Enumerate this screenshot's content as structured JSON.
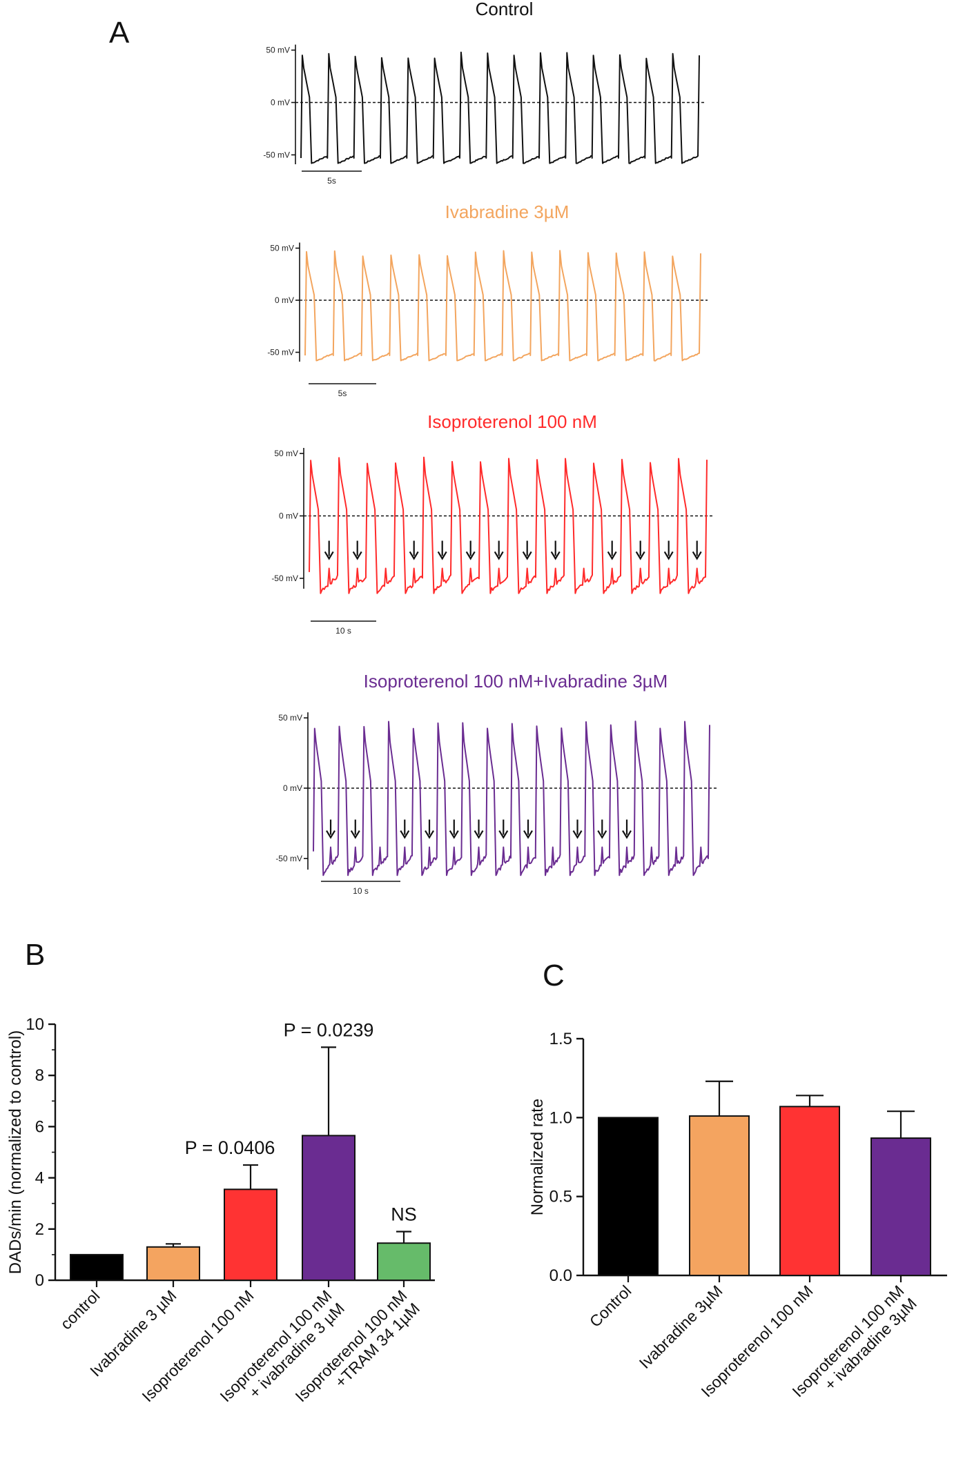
{
  "panels": {
    "A": "A",
    "B": "B",
    "C": "C"
  },
  "chart_data": [
    {
      "type": "line",
      "panel": "A",
      "description_type": "action potential traces",
      "voltage_labels": [
        "50 mV",
        "0 mV",
        "-50 mV"
      ],
      "traces": [
        {
          "name": "Control",
          "color": "#111111",
          "scale_bar": "5s",
          "beats": 15,
          "dads": 0
        },
        {
          "name": "Ivabradine 3µM",
          "color": "#f3a55e",
          "scale_bar": "5s",
          "beats": 14,
          "dads": 0
        },
        {
          "name": "Isoproterenol 100 nM",
          "color": "#ff2a2a",
          "scale_bar": "10 s",
          "beats": 14,
          "dads": 12
        },
        {
          "name": "Isoproterenol 100 nM+Ivabradine 3µM",
          "color": "#6a2c91",
          "scale_bar": "10 s",
          "beats": 16,
          "dads": 11
        }
      ]
    },
    {
      "type": "bar",
      "panel": "B",
      "ylabel": "DADs/min (normalized to control)",
      "ylim": [
        0,
        10
      ],
      "yticks": [
        "0",
        "2",
        "4",
        "6",
        "8",
        "10"
      ],
      "categories": [
        "control",
        "Ivabradine 3 µM",
        "Isoproterenol 100 nM",
        "Isoproterenol 100 nM\n+ ivabradine 3 µM",
        "Isoproterenol 100 nM\n+TRAM 34 1µM"
      ],
      "values": [
        1.0,
        1.3,
        3.55,
        5.65,
        1.45
      ],
      "errors": [
        0,
        0.12,
        0.95,
        3.45,
        0.45
      ],
      "colors": [
        "#000000",
        "#f4a460",
        "#ff3333",
        "#6a2c91",
        "#66bb6a"
      ],
      "annotations": [
        "",
        "",
        "P = 0.0406",
        "P = 0.0239",
        "NS"
      ]
    },
    {
      "type": "bar",
      "panel": "C",
      "ylabel": "Normalized rate",
      "ylim": [
        0,
        1.5
      ],
      "yticks": [
        "0.0",
        "0.5",
        "1.0",
        "1.5"
      ],
      "categories": [
        "Control",
        "Ivabradine 3µM",
        "Isoproterenol 100 nM",
        "Isoproterenol 100 nM\n+ ivabradine 3µM"
      ],
      "values": [
        1.0,
        1.01,
        1.07,
        0.87
      ],
      "errors": [
        0,
        0.22,
        0.07,
        0.17
      ],
      "colors": [
        "#000000",
        "#f4a460",
        "#ff3333",
        "#6a2c91"
      ]
    }
  ]
}
